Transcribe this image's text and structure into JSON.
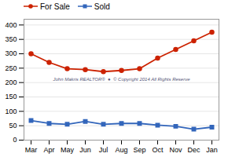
{
  "chart_data": {
    "type": "line",
    "categories": [
      "Mar",
      "Apr",
      "May",
      "Jun",
      "Jul",
      "Aug",
      "Sep",
      "Oct",
      "Nov",
      "Dec",
      "Jan"
    ],
    "series": [
      {
        "name": "For Sale",
        "color": "#cc2200",
        "marker": "circle",
        "values": [
          300,
          270,
          248,
          245,
          238,
          242,
          248,
          285,
          315,
          345,
          375
        ]
      },
      {
        "name": "Sold",
        "color": "#3366bb",
        "marker": "square",
        "values": [
          68,
          58,
          55,
          65,
          55,
          58,
          58,
          52,
          48,
          38,
          45
        ]
      }
    ],
    "ylim": [
      0,
      420
    ],
    "yticks": [
      0,
      50,
      100,
      150,
      200,
      250,
      300,
      350,
      400
    ],
    "grid": true,
    "legend": "top left",
    "annotation": "John Makris REALTOR®  ●  © Copyright 2014 All Rights Reserve"
  }
}
